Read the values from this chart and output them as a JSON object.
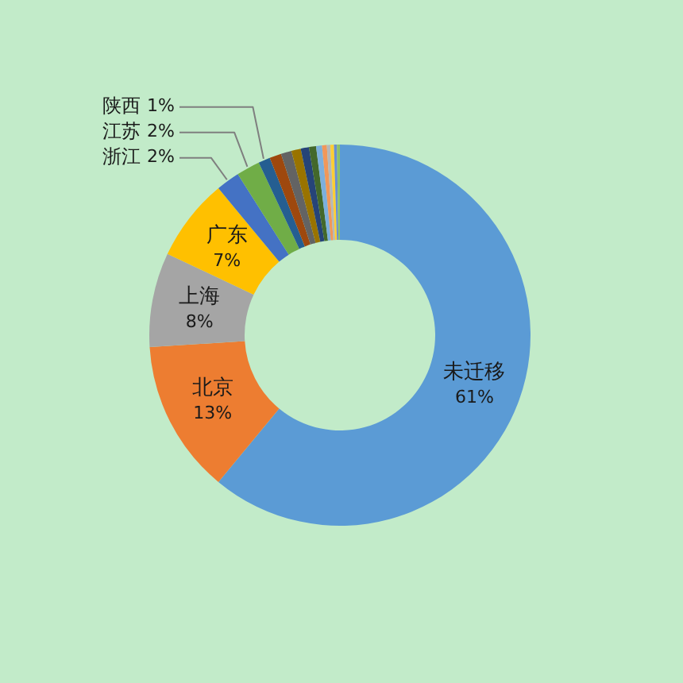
{
  "chart_data": {
    "type": "donut",
    "categories": [
      "未迁移",
      "北京",
      "上海",
      "广东",
      "浙江",
      "江苏",
      "陕西",
      null,
      null,
      null,
      null,
      null,
      null,
      null,
      null,
      null,
      null,
      null
    ],
    "values": [
      61,
      13,
      8,
      7,
      2,
      2,
      1,
      1,
      0.9,
      0.8,
      0.7,
      0.6,
      0.5,
      0.4,
      0.3,
      0.3,
      0.25,
      0.25
    ],
    "value_labels": [
      "61%",
      "13%",
      "8%",
      "7%",
      "2%",
      "2%",
      "1%",
      null,
      null,
      null,
      null,
      null,
      null,
      null,
      null,
      null,
      null,
      null
    ],
    "colors": [
      "#5b9bd5",
      "#ed7d31",
      "#a5a5a5",
      "#ffc000",
      "#4472c4",
      "#70ad47",
      "#255e91",
      "#9e480e",
      "#636363",
      "#997300",
      "#264478",
      "#43682b",
      "#7cafdd",
      "#f1975a",
      "#b7b7b7",
      "#ffcd33",
      "#698ed0",
      "#8cc168"
    ]
  }
}
